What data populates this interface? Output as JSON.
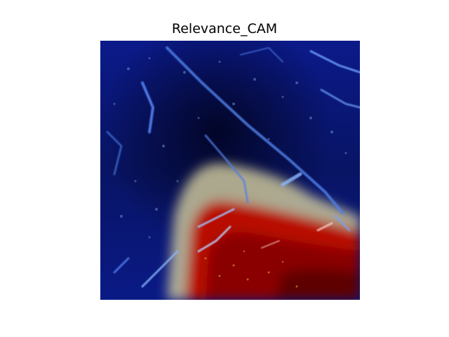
{
  "figure": {
    "title": "Relevance_CAM"
  },
  "image": {
    "description_icon": "heatmap-overlay-image",
    "colormap": "jet",
    "colors": {
      "background_dark": "#050a3a",
      "deep_blue": "#0a1a8c",
      "blue": "#1d3fd0",
      "streak": "#6fa4ff",
      "warm": "#c7c08a",
      "red": "#b20000",
      "dark_red": "#6a0000"
    }
  }
}
